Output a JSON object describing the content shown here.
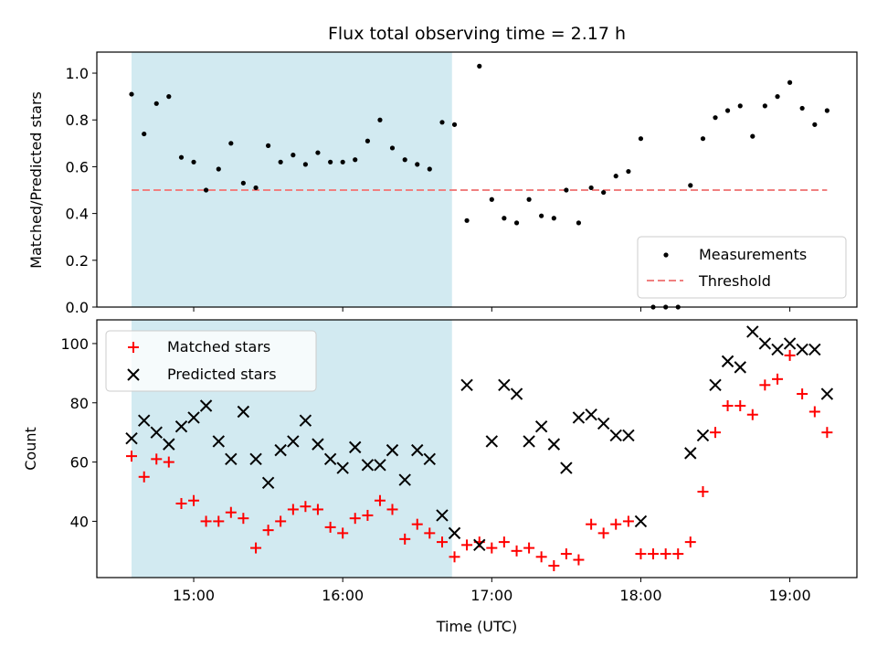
{
  "colors": {
    "measurement": "#000000",
    "threshold": "#f08080",
    "matched": "#ff0000",
    "predicted": "#000000",
    "shade": "#add8e6"
  },
  "chart_data": [
    {
      "type": "scatter",
      "title": "Flux total observing time = 2.17 h",
      "xlabel": "",
      "ylabel": "Matched/Predicted stars",
      "xlim": [
        14.35,
        19.45
      ],
      "ylim": [
        0,
        1.09
      ],
      "yticks": [
        "0.0",
        "0.2",
        "0.4",
        "0.6",
        "0.8",
        "1.0"
      ],
      "grid": false,
      "legend_position": "lower-right",
      "shaded_x_range": [
        14.583,
        16.733
      ],
      "threshold": {
        "name": "Threshold",
        "y": 0.5,
        "x_range": [
          14.583,
          19.25
        ]
      },
      "series": [
        {
          "name": "Measurements",
          "x": [
            14.583,
            14.667,
            14.75,
            14.833,
            14.917,
            15.0,
            15.083,
            15.167,
            15.25,
            15.333,
            15.417,
            15.5,
            15.583,
            15.667,
            15.75,
            15.833,
            15.917,
            16.0,
            16.083,
            16.167,
            16.25,
            16.333,
            16.417,
            16.5,
            16.583,
            16.667,
            16.75,
            16.833,
            16.917,
            17.0,
            17.083,
            17.167,
            17.25,
            17.333,
            17.417,
            17.5,
            17.583,
            17.667,
            17.75,
            17.833,
            17.917,
            18.0,
            18.083,
            18.167,
            18.25,
            18.333,
            18.417,
            18.5,
            18.583,
            18.667,
            18.75,
            18.833,
            18.917,
            19.0,
            19.083,
            19.167,
            19.25
          ],
          "y": [
            0.91,
            0.74,
            0.87,
            0.9,
            0.64,
            0.62,
            0.5,
            0.59,
            0.7,
            0.53,
            0.51,
            0.69,
            0.62,
            0.65,
            0.61,
            0.66,
            0.62,
            0.62,
            0.63,
            0.71,
            0.8,
            0.68,
            0.63,
            0.61,
            0.59,
            0.79,
            0.78,
            0.37,
            1.03,
            0.46,
            0.38,
            0.36,
            0.46,
            0.39,
            0.38,
            0.5,
            0.36,
            0.51,
            0.49,
            0.56,
            0.58,
            0.72,
            0.0,
            0.0,
            0.0,
            0.52,
            0.72,
            0.81,
            0.84,
            0.86,
            0.73,
            0.86,
            0.9,
            0.96,
            0.85,
            0.78,
            0.84
          ]
        }
      ]
    },
    {
      "type": "scatter",
      "title": "",
      "xlabel": "Time (UTC)",
      "ylabel": "Count",
      "xlim": [
        14.35,
        19.45
      ],
      "ylim": [
        21,
        108
      ],
      "xticks": [
        "15:00",
        "16:00",
        "17:00",
        "18:00",
        "19:00"
      ],
      "xtick_values": [
        15,
        16,
        17,
        18,
        19
      ],
      "yticks": [
        "40",
        "60",
        "80",
        "100"
      ],
      "grid": false,
      "legend_position": "upper-left",
      "shaded_x_range": [
        14.583,
        16.733
      ],
      "series": [
        {
          "name": "Matched stars",
          "marker": "+",
          "x": [
            14.583,
            14.667,
            14.75,
            14.833,
            14.917,
            15.0,
            15.083,
            15.167,
            15.25,
            15.333,
            15.417,
            15.5,
            15.583,
            15.667,
            15.75,
            15.833,
            15.917,
            16.0,
            16.083,
            16.167,
            16.25,
            16.333,
            16.417,
            16.5,
            16.583,
            16.667,
            16.75,
            16.833,
            16.917,
            17.0,
            17.083,
            17.167,
            17.25,
            17.333,
            17.417,
            17.5,
            17.583,
            17.667,
            17.75,
            17.833,
            17.917,
            18.0,
            18.083,
            18.167,
            18.25,
            18.333,
            18.417,
            18.5,
            18.583,
            18.667,
            18.75,
            18.833,
            18.917,
            19.0,
            19.083,
            19.167,
            19.25
          ],
          "y": [
            62,
            55,
            61,
            60,
            46,
            47,
            40,
            40,
            43,
            41,
            31,
            37,
            40,
            44,
            45,
            44,
            38,
            36,
            41,
            42,
            47,
            44,
            34,
            39,
            36,
            33,
            28,
            32,
            33,
            31,
            33,
            30,
            31,
            28,
            25,
            29,
            27,
            39,
            36,
            39,
            40,
            29,
            29,
            29,
            29,
            33,
            50,
            70,
            79,
            79,
            76,
            86,
            88,
            96,
            83,
            77,
            70
          ]
        },
        {
          "name": "Predicted stars",
          "marker": "x",
          "x": [
            14.583,
            14.667,
            14.75,
            14.833,
            14.917,
            15.0,
            15.083,
            15.167,
            15.25,
            15.333,
            15.417,
            15.5,
            15.583,
            15.667,
            15.75,
            15.833,
            15.917,
            16.0,
            16.083,
            16.167,
            16.25,
            16.333,
            16.417,
            16.5,
            16.583,
            16.667,
            16.75,
            16.833,
            16.917,
            17.0,
            17.083,
            17.167,
            17.25,
            17.333,
            17.417,
            17.5,
            17.583,
            17.667,
            17.75,
            17.833,
            17.917,
            18.0,
            18.333,
            18.417,
            18.5,
            18.583,
            18.667,
            18.75,
            18.833,
            18.917,
            19.0,
            19.083,
            19.167,
            19.25
          ],
          "y": [
            68,
            74,
            70,
            66,
            72,
            75,
            79,
            67,
            61,
            77,
            61,
            53,
            64,
            67,
            74,
            66,
            61,
            58,
            65,
            59,
            59,
            64,
            54,
            64,
            61,
            42,
            36,
            86,
            32,
            67,
            86,
            83,
            67,
            72,
            66,
            58,
            75,
            76,
            73,
            69,
            69,
            40,
            63,
            69,
            86,
            94,
            92,
            104,
            100,
            98,
            100,
            98,
            98,
            83
          ]
        }
      ]
    }
  ]
}
